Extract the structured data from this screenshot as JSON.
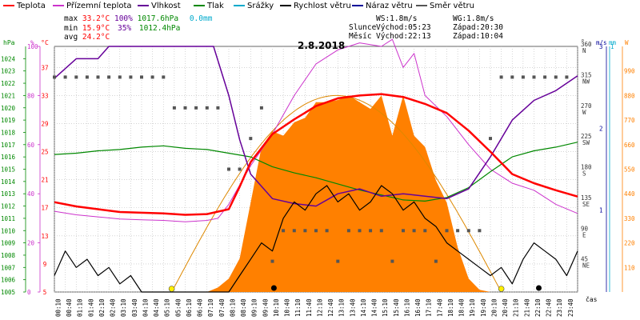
{
  "legend": [
    {
      "label": "Teplota",
      "color": "#ff0000"
    },
    {
      "label": "Přízemní teplota",
      "color": "#cc33cc"
    },
    {
      "label": "Vlhkost",
      "color": "#660099"
    },
    {
      "label": "Tlak",
      "color": "#008800"
    },
    {
      "label": "Srážky",
      "color": "#00aacc"
    },
    {
      "label": "Rychlost větru",
      "color": "#000000"
    },
    {
      "label": "Náraz větru",
      "color": "#000099"
    },
    {
      "label": "Směr větru",
      "color": "#555555"
    }
  ],
  "stats": {
    "max_label": "max",
    "max_temp": "33.2°C",
    "max_hum": "100%",
    "max_press": "1017.6hPa",
    "max_rain": "0.0mm",
    "min_label": "min",
    "min_temp": "15.9°C",
    "min_hum": "35%",
    "min_press": "1012.4hPa",
    "avg_label": "avg",
    "avg_temp": "24.2°C"
  },
  "astro": {
    "ws": "WS:1.8m/s",
    "wg": "WG:1.8m/s",
    "sun_label": "Slunce",
    "sun_rise": "Východ:05:23",
    "sun_set": "Západ:20:30",
    "moon_label": "Měsíc",
    "moon_rise": "Východ:22:13",
    "moon_set": "Západ:10:04"
  },
  "date": "2.8.2018",
  "colors": {
    "temp": "#ff0000",
    "ground": "#cc33cc",
    "hum": "#660099",
    "press": "#008800",
    "rain": "#00aacc",
    "wind": "#000000",
    "gust": "#000099",
    "dir": "#555555",
    "solar": "#ff8000",
    "sun": "#dd8800"
  },
  "chart_data": {
    "type": "line",
    "title": "2.8.2018",
    "xlabel": "čas",
    "x_ticks": [
      "00:10",
      "00:40",
      "01:10",
      "01:40",
      "02:10",
      "02:40",
      "03:10",
      "03:40",
      "04:10",
      "04:40",
      "05:10",
      "05:40",
      "06:10",
      "06:40",
      "07:10",
      "07:40",
      "08:10",
      "08:40",
      "09:10",
      "09:40",
      "10:10",
      "10:40",
      "11:10",
      "11:40",
      "12:10",
      "12:40",
      "13:10",
      "13:40",
      "14:10",
      "14:40",
      "15:10",
      "15:40",
      "16:10",
      "16:40",
      "17:10",
      "17:40",
      "18:10",
      "18:40",
      "19:10",
      "19:40",
      "20:10",
      "20:40",
      "21:10",
      "21:40",
      "22:10",
      "22:40",
      "23:10",
      "23:40"
    ],
    "axes": {
      "pressure": {
        "unit": "hPa",
        "range": [
          1005,
          1025
        ],
        "ticks": [
          "1005",
          "1006",
          "1007",
          "1008",
          "1009",
          "1010",
          "1011",
          "1012",
          "1013",
          "1014",
          "1015",
          "1016",
          "1017",
          "1018",
          "1019",
          "1020",
          "1021",
          "1022",
          "1023",
          "1024"
        ]
      },
      "humidity": {
        "unit": "%",
        "range": [
          0,
          100
        ],
        "ticks": [
          "0",
          "20",
          "40",
          "60",
          "80",
          "100"
        ]
      },
      "temperature": {
        "unit": "°C",
        "range": [
          5,
          40
        ],
        "ticks": [
          "5",
          "9",
          "13",
          "17",
          "21",
          "25",
          "29",
          "33",
          "37"
        ]
      },
      "direction": {
        "unit": "°",
        "range": [
          0,
          360
        ],
        "ticks": [
          "45",
          "90",
          "135",
          "180",
          "225",
          "270",
          "315",
          "360"
        ],
        "labels": [
          "NE",
          "E",
          "SE",
          "S",
          "SW",
          "W",
          "NW",
          "N"
        ]
      },
      "wind": {
        "unit": "m/s",
        "range": [
          0,
          3
        ],
        "ticks": [
          "0",
          "1",
          "2",
          "3"
        ]
      },
      "rain": {
        "unit": "mm",
        "range": [
          0,
          1
        ],
        "ticks": [
          "0",
          "1"
        ]
      },
      "solar": {
        "unit": "W",
        "range": [
          0,
          1100
        ],
        "ticks": [
          "0",
          "110",
          "220",
          "330",
          "440",
          "550",
          "660",
          "770",
          "880",
          "990"
        ]
      }
    },
    "series": [
      {
        "name": "Teplota",
        "axis": "temperature",
        "x": [
          0,
          1,
          2,
          3,
          4,
          5,
          6,
          7,
          8,
          8.5,
          9,
          10,
          11,
          12,
          13,
          14,
          15,
          16,
          17,
          18,
          19,
          20,
          21,
          22,
          23,
          24
        ],
        "values": [
          17.8,
          17.2,
          16.8,
          16.4,
          16.3,
          16.2,
          16.0,
          16.1,
          16.8,
          20.0,
          23.5,
          27.5,
          29.6,
          31.5,
          32.6,
          33.0,
          33.2,
          32.8,
          31.8,
          30.5,
          28.0,
          25.0,
          21.8,
          20.5,
          19.5,
          18.6
        ]
      },
      {
        "name": "Přízemní teplota",
        "axis": "temperature",
        "x": [
          0,
          1,
          2,
          3,
          4,
          5,
          6,
          7,
          7.5,
          8,
          9,
          10,
          11,
          12,
          13,
          14,
          15,
          15.5,
          16,
          16.5,
          17,
          18,
          19,
          20,
          21,
          22,
          23,
          24
        ],
        "values": [
          16.5,
          16.0,
          15.7,
          15.4,
          15.3,
          15.2,
          15.0,
          15.2,
          15.5,
          17.5,
          23.0,
          27.5,
          33.0,
          37.5,
          39.5,
          40.5,
          40.0,
          41.0,
          37.0,
          39.0,
          33.0,
          30.0,
          26.0,
          22.5,
          20.5,
          19.5,
          17.5,
          16.2
        ]
      },
      {
        "name": "Vlhkost",
        "axis": "humidity",
        "x": [
          0,
          1,
          2,
          2.5,
          3,
          4,
          5,
          6,
          7,
          7.3,
          8,
          8.5,
          9,
          10,
          11,
          12,
          13,
          14,
          15,
          16,
          17,
          18,
          19,
          20,
          21,
          22,
          23,
          24
        ],
        "values": [
          87,
          95,
          95,
          100,
          100,
          100,
          100,
          100,
          100,
          100,
          80,
          62,
          48,
          38,
          36,
          35,
          40,
          42,
          39,
          40,
          39,
          38,
          42,
          55,
          70,
          78,
          82,
          88
        ]
      },
      {
        "name": "Tlak",
        "axis": "pressure",
        "x": [
          0,
          1,
          2,
          3,
          4,
          5,
          6,
          7,
          8,
          9,
          10,
          11,
          12,
          13,
          14,
          15,
          16,
          17,
          18,
          19,
          20,
          21,
          22,
          23,
          24
        ],
        "values": [
          1016.2,
          1016.3,
          1016.5,
          1016.6,
          1016.8,
          1016.9,
          1016.7,
          1016.6,
          1016.3,
          1016.0,
          1015.2,
          1014.7,
          1014.3,
          1013.8,
          1013.3,
          1012.9,
          1012.5,
          1012.4,
          1012.7,
          1013.5,
          1014.8,
          1016.0,
          1016.5,
          1016.8,
          1017.2
        ]
      },
      {
        "name": "Rychlost větru",
        "axis": "wind",
        "x": [
          0,
          0.5,
          1,
          1.5,
          2,
          2.5,
          3,
          3.5,
          4,
          4.5,
          5,
          5.5,
          6,
          6.5,
          7,
          7.5,
          8,
          8.5,
          9,
          9.5,
          10,
          10.5,
          11,
          11.5,
          12,
          12.5,
          13,
          13.5,
          14,
          14.5,
          15,
          15.5,
          16,
          16.5,
          17,
          17.5,
          18,
          18.5,
          19,
          19.5,
          20,
          20.5,
          21,
          21.5,
          22,
          22.5,
          23,
          23.5,
          24
        ],
        "values": [
          0.2,
          0.5,
          0.3,
          0.4,
          0.2,
          0.3,
          0.1,
          0.2,
          0,
          0,
          0,
          0,
          0,
          0,
          0,
          0,
          0,
          0.2,
          0.4,
          0.6,
          0.5,
          0.9,
          1.1,
          1.0,
          1.2,
          1.3,
          1.1,
          1.2,
          1.0,
          1.1,
          1.3,
          1.2,
          1.0,
          1.1,
          0.9,
          0.8,
          0.6,
          0.5,
          0.4,
          0.3,
          0.2,
          0.3,
          0.1,
          0.4,
          0.6,
          0.5,
          0.4,
          0.2,
          0.5
        ]
      },
      {
        "name": "Směr větru",
        "axis": "direction",
        "x": [
          0,
          0.5,
          1,
          1.5,
          2,
          2.5,
          3,
          3.5,
          4,
          4.5,
          5,
          5.5,
          6,
          6.5,
          7,
          7.5,
          8,
          8.5,
          9,
          9.5,
          10,
          10.5,
          11,
          11.5,
          12,
          12.5,
          13,
          13.5,
          14,
          14.5,
          15,
          15.5,
          16,
          16.5,
          17,
          17.5,
          18,
          18.5,
          19,
          19.5,
          20,
          20.5,
          21,
          21.5,
          22,
          22.5,
          23,
          23.5
        ],
        "values": [
          315,
          315,
          315,
          315,
          315,
          315,
          315,
          315,
          315,
          315,
          315,
          270,
          270,
          270,
          270,
          270,
          180,
          180,
          225,
          270,
          45,
          90,
          90,
          90,
          90,
          90,
          45,
          90,
          90,
          90,
          90,
          45,
          90,
          90,
          90,
          45,
          90,
          90,
          90,
          90,
          225,
          315,
          315,
          315,
          315,
          315,
          315,
          315
        ]
      },
      {
        "name": "Solar",
        "axis": "solar",
        "x": [
          0,
          7,
          7.5,
          8,
          8.5,
          9,
          9.5,
          10,
          10.5,
          11,
          11.5,
          12,
          12.5,
          13,
          13.5,
          14,
          14.5,
          15,
          15.5,
          16,
          16.5,
          17,
          17.5,
          18,
          18.5,
          19,
          19.5,
          20,
          24
        ],
        "values": [
          0,
          0,
          20,
          60,
          150,
          400,
          650,
          720,
          700,
          760,
          780,
          850,
          850,
          860,
          880,
          850,
          820,
          880,
          700,
          880,
          700,
          650,
          500,
          400,
          200,
          60,
          10,
          0,
          0
        ]
      }
    ]
  }
}
